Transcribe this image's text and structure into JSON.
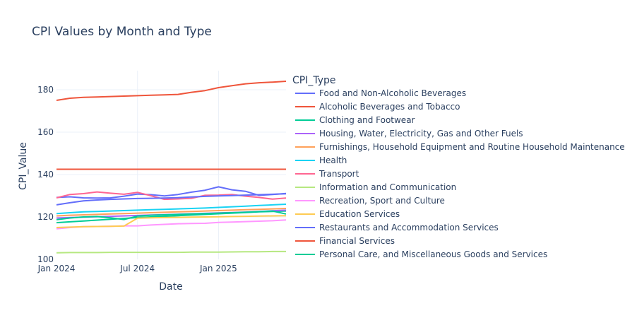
{
  "chart_data": {
    "type": "line",
    "title": "CPI Values by Month and Type",
    "xlabel": "Date",
    "ylabel": "CPI_Value",
    "legend_title": "CPI_Type",
    "legend_placement": "right",
    "grid": true,
    "x": [
      "2024-01",
      "2024-02",
      "2024-03",
      "2024-04",
      "2024-05",
      "2024-06",
      "2024-07",
      "2024-08",
      "2024-09",
      "2024-10",
      "2024-11",
      "2024-12",
      "2025-01",
      "2025-02",
      "2025-03",
      "2025-04",
      "2025-05",
      "2025-06"
    ],
    "x_ticks": [
      "Jan 2024",
      "Jul 2024",
      "Jan 2025"
    ],
    "y_ticks": [
      100,
      120,
      140,
      160,
      180
    ],
    "ylim": [
      100,
      189
    ],
    "series": [
      {
        "name": "Food and Non-Alcoholic Beverages",
        "color": "#636efa",
        "values": [
          129.2,
          129.5,
          129.0,
          128.9,
          129.0,
          129.8,
          130.8,
          130.5,
          129.9,
          130.6,
          131.7,
          132.6,
          134.2,
          132.8,
          132.1,
          130.2,
          130.6,
          131.1
        ]
      },
      {
        "name": "Alcoholic Beverages and Tobacco",
        "color": "#EF553B",
        "values": [
          175.0,
          176.0,
          176.4,
          176.6,
          176.8,
          177.0,
          177.2,
          177.4,
          177.6,
          177.8,
          178.8,
          179.6,
          181.0,
          181.9,
          182.8,
          183.3,
          183.6,
          184.0
        ]
      },
      {
        "name": "Clothing and Footwear",
        "color": "#00cc96",
        "values": [
          117.3,
          117.7,
          118.1,
          118.5,
          118.9,
          119.3,
          119.7,
          120.0,
          120.3,
          120.6,
          120.9,
          121.2,
          121.5,
          121.8,
          122.1,
          122.4,
          122.6,
          122.8
        ]
      },
      {
        "name": "Housing, Water, Electricity, Gas and Other Fuels",
        "color": "#ab63fa",
        "values": [
          119.5,
          119.7,
          119.9,
          120.1,
          120.3,
          120.5,
          120.7,
          120.9,
          121.1,
          121.3,
          121.5,
          121.7,
          121.9,
          122.1,
          122.3,
          122.6,
          122.9,
          123.2
        ]
      },
      {
        "name": "Furnishings, Household Equipment and Routine Household Maintenance",
        "color": "#FFA15A",
        "values": [
          120.5,
          120.8,
          121.0,
          121.2,
          121.4,
          121.6,
          121.8,
          122.0,
          122.2,
          122.4,
          122.6,
          122.8,
          123.0,
          123.2,
          123.4,
          123.6,
          123.8,
          124.0
        ]
      },
      {
        "name": "Health",
        "color": "#19d3f3",
        "values": [
          121.6,
          122.0,
          122.4,
          122.6,
          122.8,
          123.0,
          123.2,
          123.4,
          123.6,
          123.8,
          124.0,
          124.2,
          124.5,
          124.8,
          125.1,
          125.4,
          125.7,
          126.0
        ]
      },
      {
        "name": "Transport",
        "color": "#FF6692",
        "values": [
          129.0,
          130.6,
          131.0,
          131.8,
          131.2,
          130.7,
          131.6,
          130.0,
          128.3,
          128.5,
          128.8,
          130.2,
          130.3,
          130.6,
          129.8,
          129.2,
          128.4,
          128.9
        ]
      },
      {
        "name": "Information and Communication",
        "color": "#B6E880",
        "values": [
          103.1,
          103.2,
          103.2,
          103.2,
          103.3,
          103.3,
          103.3,
          103.3,
          103.3,
          103.3,
          103.4,
          103.4,
          103.4,
          103.5,
          103.6,
          103.6,
          103.7,
          103.7
        ]
      },
      {
        "name": "Recreation, Sport and Culture",
        "color": "#FF97FF",
        "values": [
          114.4,
          115.0,
          115.4,
          115.5,
          115.6,
          115.8,
          115.8,
          116.2,
          116.5,
          116.8,
          116.9,
          117.0,
          117.4,
          117.6,
          117.8,
          118.0,
          118.2,
          118.6
        ]
      },
      {
        "name": "Education Services",
        "color": "#FECB52",
        "values": [
          115.0,
          115.2,
          115.4,
          115.5,
          115.6,
          115.7,
          119.4,
          119.6,
          119.7,
          119.8,
          119.9,
          120.0,
          120.1,
          120.2,
          120.3,
          120.4,
          120.5,
          120.6
        ]
      },
      {
        "name": "Restaurants and Accommodation Services",
        "color": "#636efa",
        "values": [
          125.7,
          126.7,
          127.6,
          128.0,
          128.3,
          128.5,
          128.7,
          128.8,
          128.9,
          129.1,
          129.4,
          129.7,
          129.9,
          130.1,
          130.3,
          130.5,
          130.7,
          130.9
        ]
      },
      {
        "name": "Financial Services",
        "color": "#EF553B",
        "values": [
          142.5,
          142.5,
          142.5,
          142.5,
          142.5,
          142.5,
          142.5,
          142.5,
          142.5,
          142.5,
          142.5,
          142.5,
          142.5,
          142.5,
          142.5,
          142.5,
          142.5,
          142.5
        ]
      },
      {
        "name": "Personal Care, and Miscellaneous Goods and Services",
        "color": "#00cc96",
        "values": [
          118.7,
          119.5,
          120.0,
          120.2,
          119.6,
          118.8,
          120.4,
          120.8,
          121.0,
          121.2,
          121.4,
          121.6,
          121.8,
          122.0,
          122.2,
          122.5,
          122.8,
          121.4
        ]
      }
    ]
  }
}
